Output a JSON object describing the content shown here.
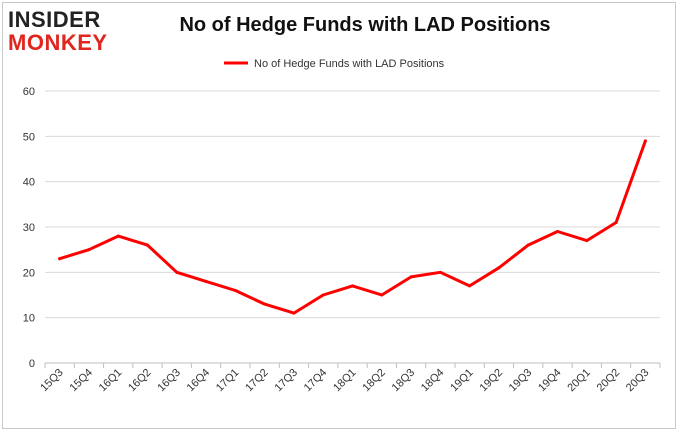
{
  "logo": {
    "line1": "INSIDER",
    "line2": "MONKEY"
  },
  "chart_data": {
    "type": "line",
    "title": "No of Hedge Funds with LAD Positions",
    "xlabel": "",
    "ylabel": "",
    "categories": [
      "15Q3",
      "15Q4",
      "16Q1",
      "16Q2",
      "16Q3",
      "16Q4",
      "17Q1",
      "17Q2",
      "17Q3",
      "17Q4",
      "18Q1",
      "18Q2",
      "18Q3",
      "18Q4",
      "19Q1",
      "19Q2",
      "19Q3",
      "19Q4",
      "20Q1",
      "20Q2",
      "20Q3"
    ],
    "series": [
      {
        "name": "No of Hedge Funds with LAD Positions",
        "values": [
          23,
          25,
          28,
          26,
          20,
          18,
          16,
          13,
          11,
          15,
          17,
          15,
          19,
          20,
          17,
          21,
          26,
          29,
          27,
          31,
          49
        ],
        "color": "#ff0000"
      }
    ],
    "ylim": [
      0,
      60
    ],
    "yticks": [
      0,
      10,
      20,
      30,
      40,
      50,
      60
    ],
    "grid": true,
    "legend_position": "top-center"
  }
}
